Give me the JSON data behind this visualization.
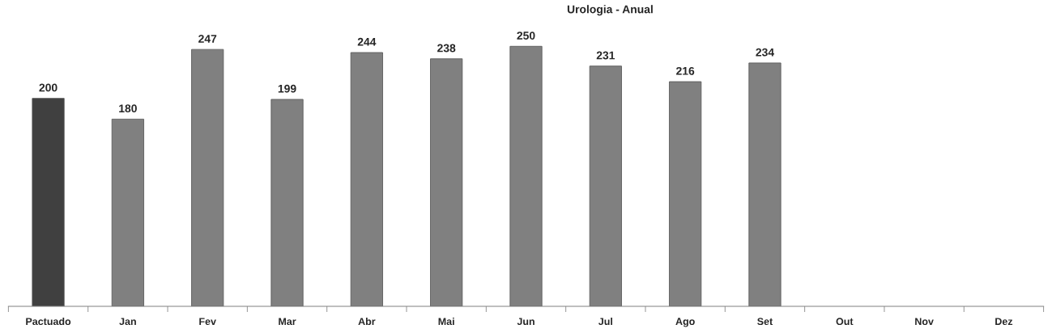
{
  "chart_data": {
    "type": "bar",
    "title": "Urologia - Anual",
    "categories": [
      "Pactuado",
      "Jan",
      "Fev",
      "Mar",
      "Abr",
      "Mai",
      "Jun",
      "Jul",
      "Ago",
      "Set",
      "Out",
      "Nov",
      "Dez"
    ],
    "values": [
      200,
      180,
      247,
      199,
      244,
      238,
      250,
      231,
      216,
      234,
      null,
      null,
      null
    ],
    "colors": [
      "#404040",
      "#808080",
      "#808080",
      "#808080",
      "#808080",
      "#808080",
      "#808080",
      "#808080",
      "#808080",
      "#808080",
      "#808080",
      "#808080",
      "#808080"
    ],
    "data_labels": true,
    "grid": false,
    "legend": false,
    "tick_labels": "x"
  }
}
